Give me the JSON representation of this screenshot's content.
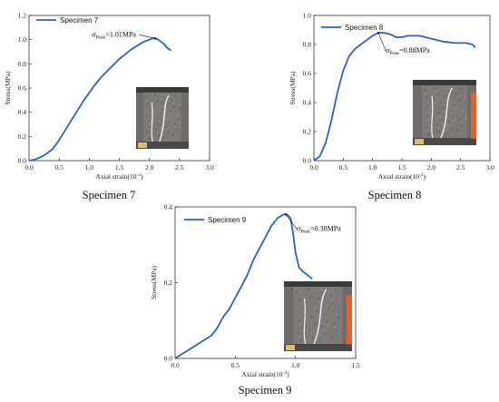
{
  "chart_data": [
    {
      "type": "line",
      "caption": "Specimen 7",
      "xlabel": "Axial strain(10",
      "xlabel_sup": "-2",
      "xlabel_end": ")",
      "ylabel": "Stress(MPa)",
      "xlim": [
        0,
        3.0
      ],
      "ylim": [
        0,
        1.2
      ],
      "x_ticks": [
        "0.0",
        "0.5",
        "1.0",
        "1.5",
        "2.0",
        "2.5",
        "3.0"
      ],
      "y_ticks": [
        "0.0",
        "0.2",
        "0.4",
        "0.6",
        "0.8",
        "1.0",
        "1.2"
      ],
      "legend": "top-left",
      "color": "#2a62c8",
      "annotation": {
        "sigma": "σ",
        "sub": "Peak",
        "value": "=1.01MPa",
        "peak": [
          2.1,
          1.01
        ]
      },
      "series": [
        {
          "name": "Specimen 7",
          "x": [
            0.0,
            0.1,
            0.2,
            0.3,
            0.4,
            0.5,
            0.6,
            0.7,
            0.8,
            0.9,
            1.0,
            1.1,
            1.2,
            1.3,
            1.4,
            1.5,
            1.6,
            1.7,
            1.8,
            1.9,
            2.0,
            2.05,
            2.1,
            2.15,
            2.2,
            2.25,
            2.3,
            2.36
          ],
          "y": [
            0.0,
            0.01,
            0.03,
            0.06,
            0.1,
            0.17,
            0.25,
            0.33,
            0.41,
            0.49,
            0.56,
            0.63,
            0.69,
            0.74,
            0.79,
            0.84,
            0.88,
            0.92,
            0.95,
            0.98,
            1.0,
            1.01,
            1.01,
            1.0,
            0.98,
            0.96,
            0.93,
            0.91
          ]
        }
      ]
    },
    {
      "type": "line",
      "caption": "Specimen 8",
      "xlabel": "Axial strain(10",
      "xlabel_sup": "-2",
      "xlabel_end": ")",
      "ylabel": "Stress(MPa)",
      "xlim": [
        0,
        3.0
      ],
      "ylim": [
        0,
        1.0
      ],
      "x_ticks": [
        "0.0",
        "0.5",
        "1.0",
        "1.5",
        "2.0",
        "2.5",
        "3.0"
      ],
      "y_ticks": [
        "0.0",
        "0.2",
        "0.4",
        "0.6",
        "0.8",
        "1.0"
      ],
      "legend": "top-left",
      "color": "#2a62c8",
      "annotation": {
        "sigma": "σ",
        "sub": "Peak",
        "value": "=0.88MPa",
        "peak": [
          1.1,
          0.88
        ]
      },
      "series": [
        {
          "name": "Specimen 8",
          "x": [
            0.0,
            0.1,
            0.2,
            0.3,
            0.4,
            0.5,
            0.6,
            0.7,
            0.8,
            0.9,
            1.0,
            1.1,
            1.2,
            1.3,
            1.4,
            1.5,
            1.6,
            1.7,
            1.8,
            1.9,
            2.0,
            2.2,
            2.4,
            2.6,
            2.7,
            2.75
          ],
          "y": [
            0.0,
            0.03,
            0.12,
            0.28,
            0.47,
            0.62,
            0.72,
            0.77,
            0.8,
            0.83,
            0.86,
            0.88,
            0.88,
            0.87,
            0.85,
            0.85,
            0.86,
            0.86,
            0.86,
            0.85,
            0.84,
            0.82,
            0.81,
            0.81,
            0.8,
            0.78
          ]
        }
      ]
    },
    {
      "type": "line",
      "caption": "Specimen 9",
      "xlabel": "Axial strain(10",
      "xlabel_sup": "-2",
      "xlabel_end": ")",
      "ylabel": "Stress(MPa)",
      "xlim": [
        0,
        1.5
      ],
      "ylim": [
        0,
        0.4
      ],
      "x_ticks": [
        "0.0",
        "0.5",
        "1.0",
        "1.5"
      ],
      "y_ticks": [
        "0.0",
        "0.2",
        "0.4"
      ],
      "legend": "top-left",
      "color": "#2a62c8",
      "annotation": {
        "sigma": "σ",
        "sub": "Peak",
        "value": "=0.38MPa",
        "peak": [
          0.92,
          0.38
        ]
      },
      "series": [
        {
          "name": "Specimen 9",
          "x": [
            0.0,
            0.05,
            0.1,
            0.15,
            0.2,
            0.25,
            0.3,
            0.35,
            0.4,
            0.45,
            0.5,
            0.55,
            0.6,
            0.65,
            0.7,
            0.75,
            0.8,
            0.85,
            0.9,
            0.93,
            0.96,
            0.98,
            1.0,
            1.03,
            1.06,
            1.1,
            1.14
          ],
          "y": [
            0.0,
            0.01,
            0.02,
            0.03,
            0.04,
            0.05,
            0.06,
            0.08,
            0.11,
            0.13,
            0.16,
            0.19,
            0.22,
            0.26,
            0.29,
            0.32,
            0.35,
            0.37,
            0.38,
            0.38,
            0.37,
            0.33,
            0.28,
            0.24,
            0.23,
            0.22,
            0.21
          ]
        }
      ]
    }
  ]
}
